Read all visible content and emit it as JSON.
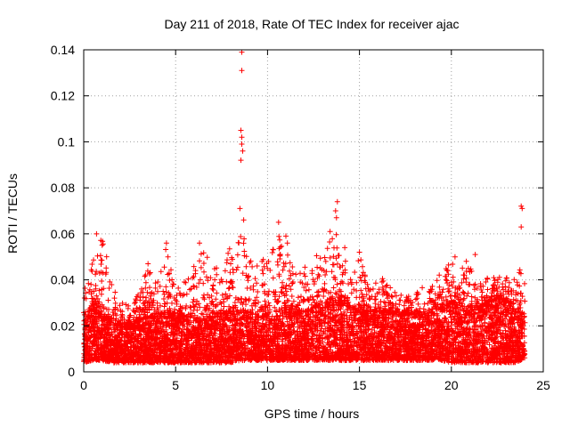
{
  "chart_data": {
    "type": "scatter",
    "title": "Day 211 of 2018, Rate Of TEC Index for receiver ajac",
    "xlabel": "GPS time / hours",
    "ylabel": "ROTI / TECUs",
    "xlim": [
      0,
      25
    ],
    "ylim": [
      0,
      0.14
    ],
    "xticks": [
      0,
      5,
      10,
      15,
      20,
      25
    ],
    "xtick_labels": [
      "0",
      "5",
      "10",
      "15",
      "20",
      "25"
    ],
    "yticks": [
      0,
      0.02,
      0.04,
      0.06,
      0.08,
      0.1,
      0.12,
      0.14
    ],
    "ytick_labels": [
      "0",
      "0.02",
      "0.04",
      "0.06",
      "0.08",
      "0.1",
      "0.12",
      "0.14"
    ],
    "grid": true,
    "marker": "+",
    "color": "#ff0000",
    "series": [
      {
        "name": "ROTI",
        "notable_points": [
          {
            "x": 8.6,
            "y": 0.139
          },
          {
            "x": 8.6,
            "y": 0.131
          },
          {
            "x": 8.55,
            "y": 0.105
          },
          {
            "x": 8.6,
            "y": 0.102
          },
          {
            "x": 8.6,
            "y": 0.099
          },
          {
            "x": 8.65,
            "y": 0.096
          },
          {
            "x": 8.55,
            "y": 0.092
          },
          {
            "x": 8.5,
            "y": 0.071
          },
          {
            "x": 8.7,
            "y": 0.066
          },
          {
            "x": 10.6,
            "y": 0.065
          },
          {
            "x": 13.8,
            "y": 0.074
          },
          {
            "x": 13.7,
            "y": 0.07
          },
          {
            "x": 13.75,
            "y": 0.067
          },
          {
            "x": 13.4,
            "y": 0.061
          },
          {
            "x": 23.8,
            "y": 0.072
          },
          {
            "x": 23.85,
            "y": 0.071
          },
          {
            "x": 23.8,
            "y": 0.063
          },
          {
            "x": 0.7,
            "y": 0.06
          },
          {
            "x": 4.5,
            "y": 0.056
          },
          {
            "x": 6.3,
            "y": 0.056
          },
          {
            "x": 11.0,
            "y": 0.059
          },
          {
            "x": 14.2,
            "y": 0.054
          },
          {
            "x": 15.0,
            "y": 0.052
          },
          {
            "x": 20.2,
            "y": 0.05
          },
          {
            "x": 21.3,
            "y": 0.051
          },
          {
            "x": 3.5,
            "y": 0.047
          }
        ],
        "envelope": {
          "hours": [
            0,
            0.5,
            1,
            1.5,
            2,
            2.5,
            3,
            3.5,
            4,
            4.5,
            5,
            5.5,
            6,
            6.5,
            7,
            7.5,
            8,
            8.5,
            9,
            9.5,
            10,
            10.5,
            11,
            11.5,
            12,
            12.5,
            13,
            13.5,
            14,
            14.5,
            15,
            15.5,
            16,
            16.5,
            17,
            17.5,
            18,
            18.5,
            19,
            19.5,
            20,
            20.5,
            21,
            21.5,
            22,
            22.5,
            23,
            23.5,
            24
          ],
          "typical_low": [
            0.004,
            0.005,
            0.005,
            0.004,
            0.004,
            0.004,
            0.004,
            0.004,
            0.004,
            0.004,
            0.004,
            0.004,
            0.004,
            0.004,
            0.004,
            0.004,
            0.004,
            0.005,
            0.005,
            0.005,
            0.005,
            0.005,
            0.005,
            0.005,
            0.005,
            0.005,
            0.005,
            0.005,
            0.005,
            0.005,
            0.005,
            0.005,
            0.005,
            0.005,
            0.005,
            0.005,
            0.005,
            0.005,
            0.005,
            0.005,
            0.004,
            0.004,
            0.004,
            0.004,
            0.004,
            0.004,
            0.004,
            0.004,
            0.006
          ],
          "typical_high": [
            0.022,
            0.03,
            0.025,
            0.022,
            0.02,
            0.02,
            0.022,
            0.024,
            0.024,
            0.026,
            0.024,
            0.024,
            0.022,
            0.022,
            0.024,
            0.026,
            0.026,
            0.026,
            0.026,
            0.024,
            0.024,
            0.026,
            0.028,
            0.026,
            0.026,
            0.028,
            0.03,
            0.032,
            0.03,
            0.028,
            0.026,
            0.026,
            0.026,
            0.026,
            0.025,
            0.025,
            0.025,
            0.025,
            0.026,
            0.028,
            0.03,
            0.03,
            0.028,
            0.028,
            0.03,
            0.032,
            0.03,
            0.026,
            0.024
          ],
          "peak": [
            0.04,
            0.048,
            0.06,
            0.04,
            0.03,
            0.03,
            0.034,
            0.047,
            0.038,
            0.056,
            0.035,
            0.04,
            0.046,
            0.056,
            0.045,
            0.048,
            0.056,
            0.139,
            0.05,
            0.048,
            0.05,
            0.065,
            0.059,
            0.042,
            0.047,
            0.05,
            0.055,
            0.074,
            0.054,
            0.045,
            0.052,
            0.036,
            0.044,
            0.038,
            0.035,
            0.032,
            0.036,
            0.037,
            0.038,
            0.044,
            0.05,
            0.045,
            0.051,
            0.04,
            0.042,
            0.042,
            0.041,
            0.04,
            0.072
          ]
        }
      }
    ]
  }
}
